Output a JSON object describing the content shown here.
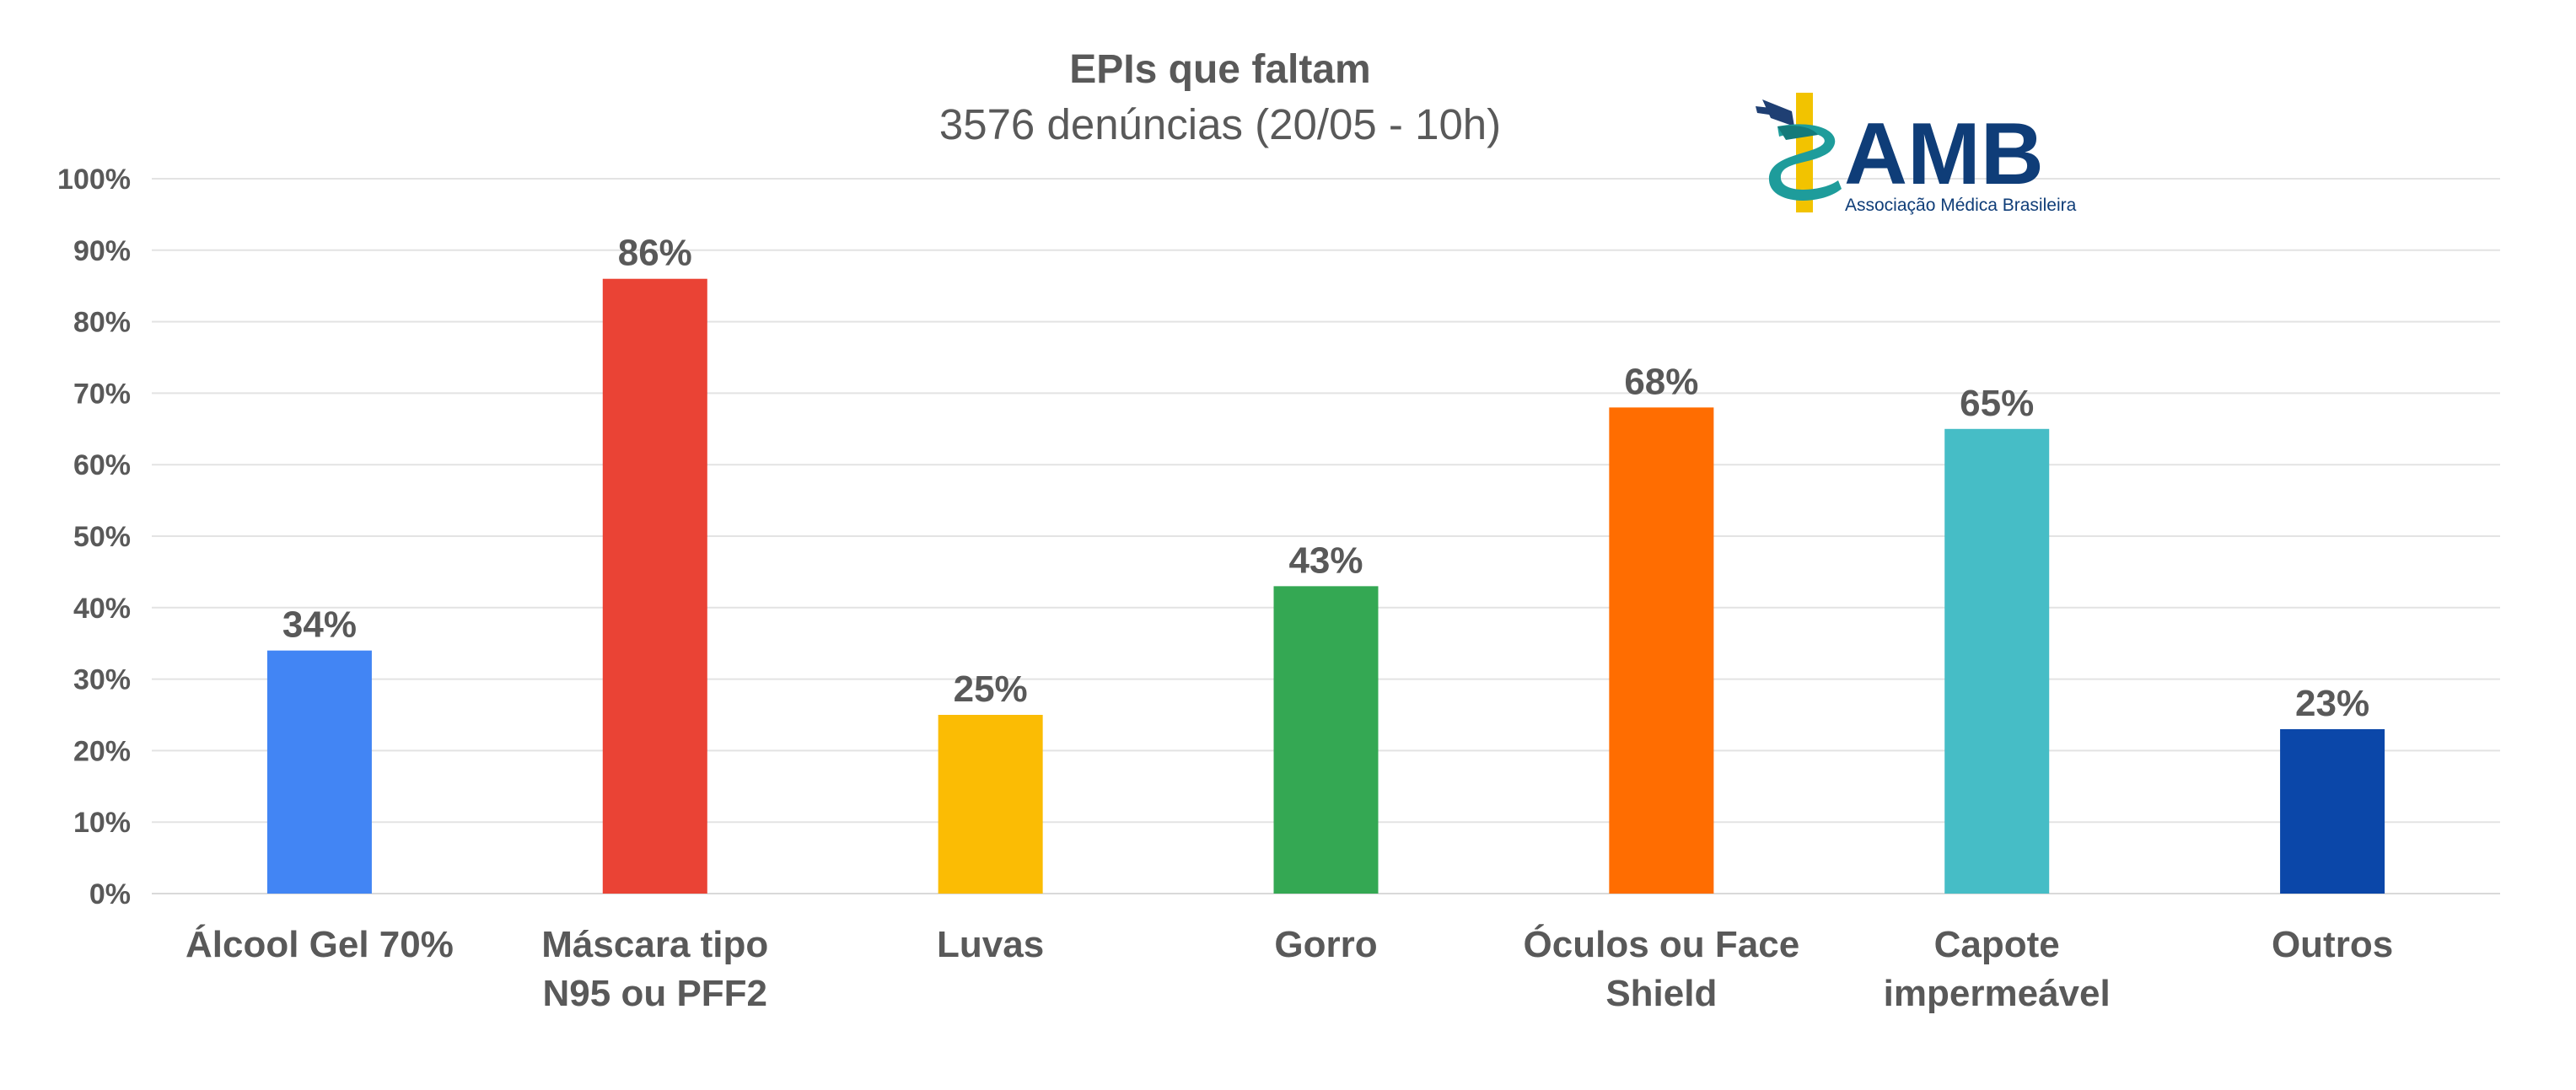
{
  "chart_data": {
    "type": "bar",
    "title": "EPIs que faltam",
    "subtitle": "3576 denúncias (20/05 - 10h)",
    "categories": [
      [
        "Álcool Gel 70%"
      ],
      [
        "Máscara tipo",
        "N95 ou PFF2"
      ],
      [
        "Luvas"
      ],
      [
        "Gorro"
      ],
      [
        "Óculos ou Face",
        "Shield"
      ],
      [
        "Capote",
        "impermeável"
      ],
      [
        "Outros"
      ]
    ],
    "values": [
      34,
      86,
      25,
      43,
      68,
      65,
      23
    ],
    "data_labels": [
      "34%",
      "86%",
      "25%",
      "43%",
      "68%",
      "65%",
      "23%"
    ],
    "colors": [
      "#4285f4",
      "#ea4335",
      "#fbbc04",
      "#34a853",
      "#ff6d01",
      "#46bdc6",
      "#0b47a9"
    ],
    "yticks": [
      "0%",
      "10%",
      "20%",
      "30%",
      "40%",
      "50%",
      "60%",
      "70%",
      "80%",
      "90%",
      "100%"
    ],
    "ylim": [
      0,
      100
    ],
    "grid": true,
    "legend": "none"
  },
  "logo": {
    "name": "AMB",
    "tagline": "Associação Médica Brasileira",
    "colors": {
      "text": "#0f3d78",
      "staff": "#f2c300",
      "snake": "#1e9c9b"
    }
  }
}
